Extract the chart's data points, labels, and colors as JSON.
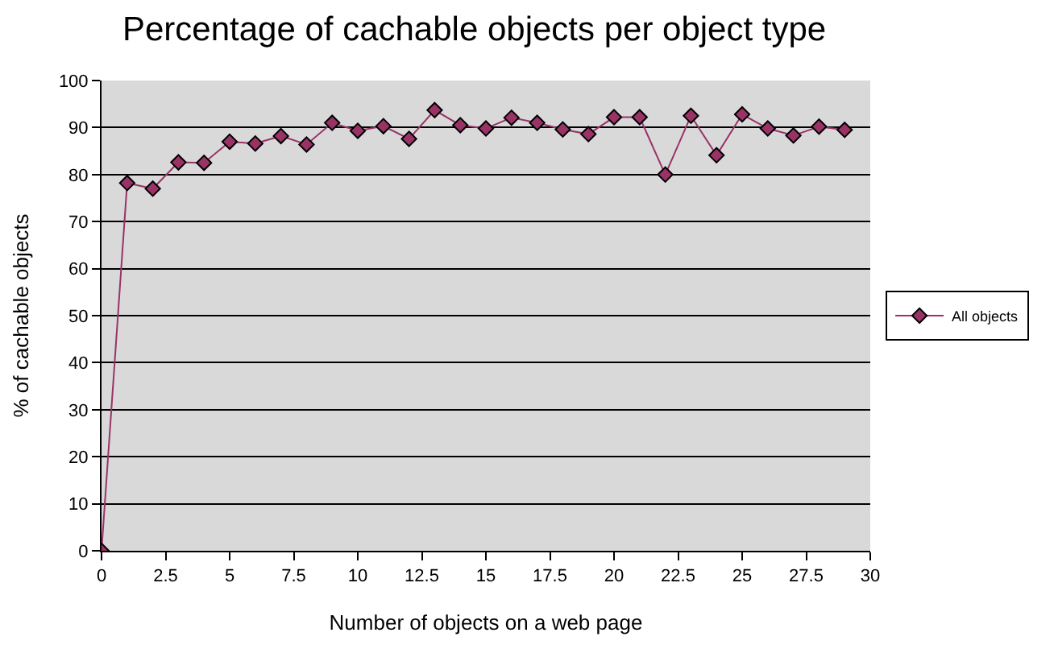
{
  "chart_data": {
    "type": "line",
    "title": "Percentage of cachable objects per object type",
    "xlabel": "Number of objects on a web page",
    "ylabel": "% of cachable objects",
    "x": [
      0,
      1,
      2,
      3,
      4,
      5,
      6,
      7,
      8,
      9,
      10,
      11,
      12,
      13,
      14,
      15,
      16,
      17,
      18,
      19,
      20,
      21,
      22,
      23,
      24,
      25,
      26,
      27,
      28,
      29
    ],
    "series": [
      {
        "name": "All objects",
        "color": "#993366",
        "values": [
          0,
          78.2,
          77,
          82.6,
          82.5,
          87,
          86.6,
          88.2,
          86.4,
          91,
          89.3,
          90.3,
          87.6,
          93.7,
          90.5,
          89.8,
          92.1,
          91,
          89.6,
          88.6,
          92.2,
          92.2,
          80,
          92.5,
          84.1,
          92.8,
          89.8,
          88.3,
          90.2,
          89.5
        ]
      }
    ],
    "xlim": [
      0,
      30
    ],
    "xticks": [
      0,
      2.5,
      5,
      7.5,
      10,
      12.5,
      15,
      17.5,
      20,
      22.5,
      25,
      27.5,
      30
    ],
    "ylim": [
      0,
      100
    ],
    "yticks": [
      0,
      10,
      20,
      30,
      40,
      50,
      60,
      70,
      80,
      90,
      100
    ],
    "grid": "y",
    "legend": "right",
    "marker": "diamond",
    "line_style": "solid"
  }
}
